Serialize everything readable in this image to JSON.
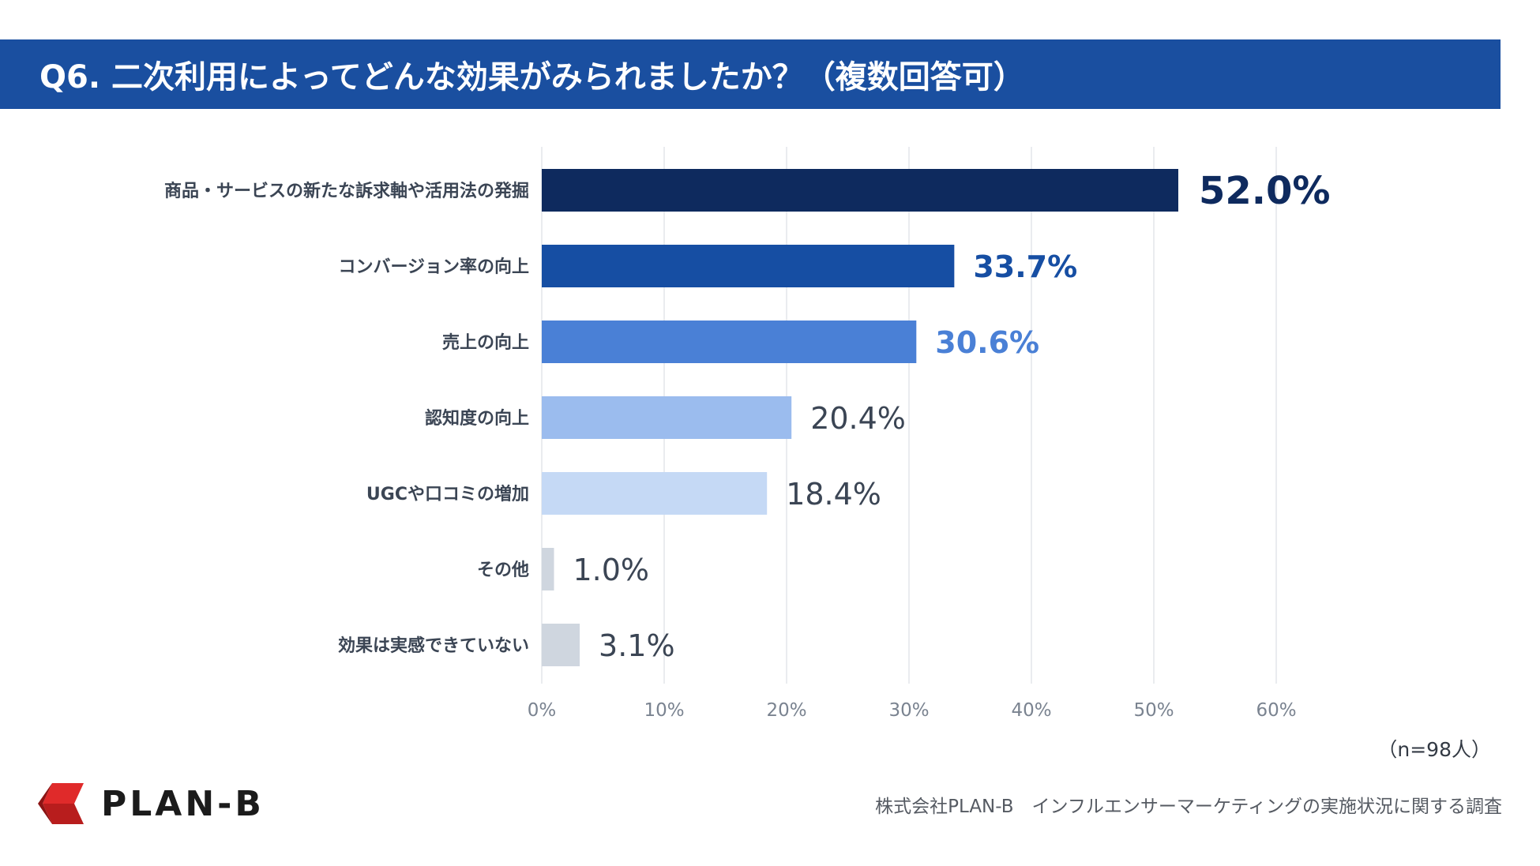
{
  "header": {
    "title": "Q6. 二次利用によってどんな効果がみられましたか？（複数回答可）"
  },
  "chart_data": {
    "type": "bar",
    "orientation": "horizontal",
    "title": "Q6. 二次利用によってどんな効果がみられましたか？（複数回答可）",
    "categories": [
      "商品・サービスの新たな訴求軸や活用法の発掘",
      "コンバージョン率の向上",
      "売上の向上",
      "認知度の向上",
      "UGCや口コミの増加",
      "その他",
      "効果は実感できていない"
    ],
    "values": [
      52.0,
      33.7,
      30.6,
      20.4,
      18.4,
      1.0,
      3.1
    ],
    "value_labels": [
      "52.0%",
      "33.7%",
      "30.6%",
      "20.4%",
      "18.4%",
      "1.0%",
      "3.1%"
    ],
    "bar_colors": [
      "#0e2a5e",
      "#164ea3",
      "#4a80d6",
      "#9bbcee",
      "#c5d9f5",
      "#cfd6df",
      "#cfd6df"
    ],
    "label_colors": [
      "#0e2a5e",
      "#164ea3",
      "#4a80d6",
      "#3b4554",
      "#3b4554",
      "#3b4554",
      "#3b4554"
    ],
    "xlim": [
      0,
      60
    ],
    "xticks": [
      0,
      10,
      20,
      30,
      40,
      50,
      60
    ],
    "xtick_labels": [
      "0%",
      "10%",
      "20%",
      "30%",
      "40%",
      "50%",
      "60%"
    ],
    "xlabel": "",
    "ylabel": "",
    "grid": true,
    "legend": "none"
  },
  "sample_size": "（n=98人）",
  "footer": {
    "logo_text": "PLAN-B",
    "source": "株式会社PLAN-B　インフルエンサーマーケティングの実施状況に関する調査"
  },
  "colors": {
    "header_bg": "#1a4fa0",
    "grid": "#e3e6ea",
    "logo_red": "#e02a2a"
  }
}
